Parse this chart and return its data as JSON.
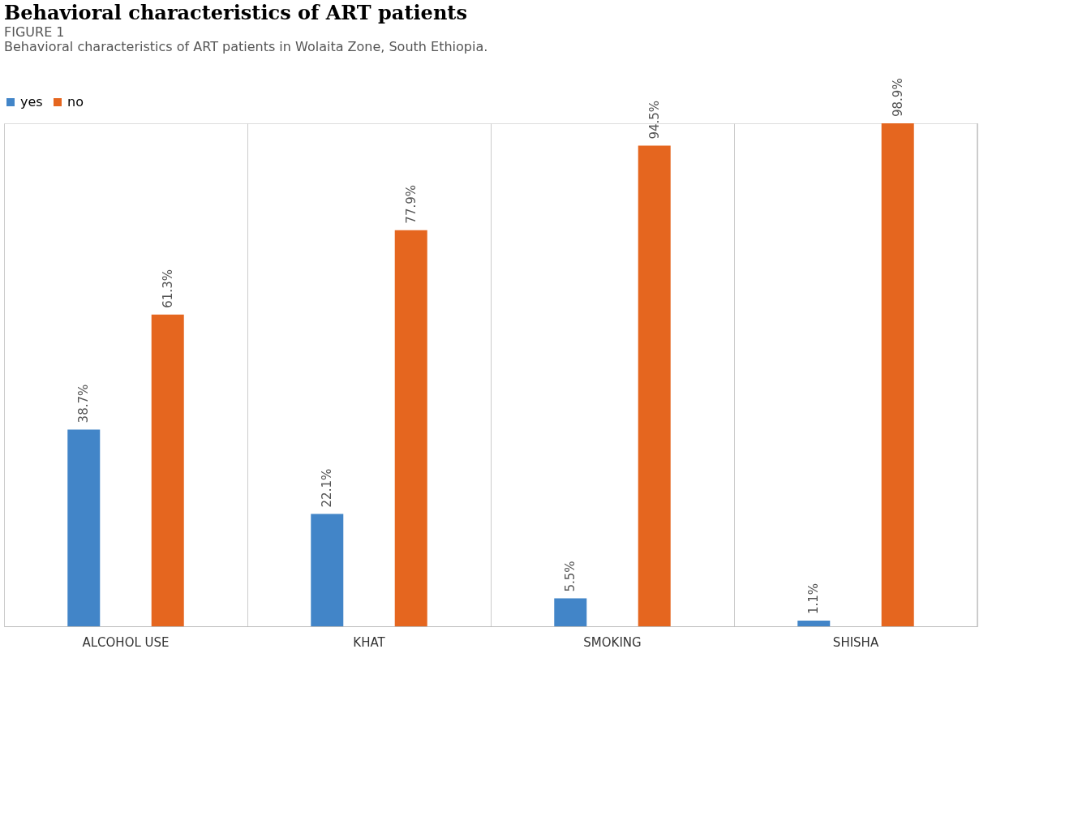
{
  "chart_data": {
    "type": "bar",
    "title": "Behavioral characteristics of ART patients",
    "categories": [
      "ALCOHOL USE",
      "KHAT",
      "SMOKING",
      "SHISHA"
    ],
    "series": [
      {
        "name": "yes",
        "color": "#4285c8",
        "values": [
          38.7,
          22.1,
          5.5,
          1.1
        ],
        "value_labels": [
          "38.7%",
          "22.1%",
          "5.5%",
          "1.1%"
        ]
      },
      {
        "name": "no",
        "color": "#e5661f",
        "values": [
          61.3,
          77.9,
          94.5,
          98.9
        ],
        "value_labels": [
          "61.3%",
          "77.9%",
          "94.5%",
          "98.9%"
        ]
      }
    ],
    "grid": "x",
    "legend": "top",
    "annotations": [
      "FIGURE 1",
      "Behavioral characteristics of ART patients in Wolaita Zone, South Ethiopia."
    ]
  }
}
